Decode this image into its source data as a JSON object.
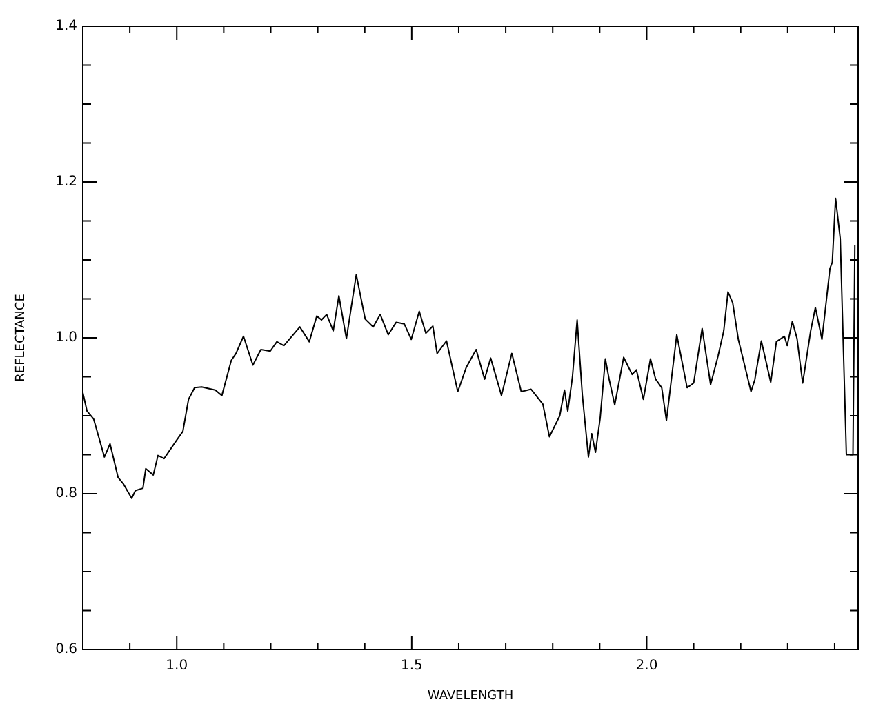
{
  "chart_data": {
    "type": "line",
    "xlabel": "WAVELENGTH",
    "ylabel": "REFLECTANCE",
    "xlim": [
      0.8,
      2.45
    ],
    "ylim": [
      0.6,
      1.4
    ],
    "xticks": [
      {
        "value": 0.9,
        "label": null
      },
      {
        "value": 1.0,
        "label": "1.0"
      },
      {
        "value": 1.1,
        "label": null
      },
      {
        "value": 1.2,
        "label": null
      },
      {
        "value": 1.3,
        "label": null
      },
      {
        "value": 1.4,
        "label": null
      },
      {
        "value": 1.5,
        "label": "1.5"
      },
      {
        "value": 1.6,
        "label": null
      },
      {
        "value": 1.7,
        "label": null
      },
      {
        "value": 1.8,
        "label": null
      },
      {
        "value": 1.9,
        "label": null
      },
      {
        "value": 2.0,
        "label": "2.0"
      },
      {
        "value": 2.1,
        "label": null
      },
      {
        "value": 2.2,
        "label": null
      },
      {
        "value": 2.3,
        "label": null
      },
      {
        "value": 2.4,
        "label": null
      }
    ],
    "yticks": [
      0.6,
      {
        "value": 0.65,
        "label": null
      },
      {
        "value": 0.7,
        "label": null
      },
      {
        "value": 0.75,
        "label": null
      },
      0.8,
      {
        "value": 0.85,
        "label": null
      },
      {
        "value": 0.9,
        "label": null
      },
      {
        "value": 0.95,
        "label": null
      },
      {
        "value": 1.0,
        "label": "1.0"
      },
      {
        "value": 1.05,
        "label": null
      },
      {
        "value": 1.1,
        "label": null
      },
      {
        "value": 1.15,
        "label": null
      },
      1.2,
      {
        "value": 1.25,
        "label": null
      },
      {
        "value": 1.3,
        "label": null
      },
      {
        "value": 1.35,
        "label": null
      },
      1.4
    ],
    "grid": false,
    "legend": false,
    "marker": "none",
    "line_style": "solid",
    "series": [
      {
        "color": "#000000",
        "x": [
          0.8,
          0.809,
          0.823,
          0.846,
          0.858,
          0.875,
          0.887,
          0.904,
          0.912,
          0.928,
          0.934,
          0.95,
          0.96,
          0.973,
          0.999,
          1.013,
          1.025,
          1.038,
          1.053,
          1.082,
          1.096,
          1.116,
          1.126,
          1.142,
          1.162,
          1.179,
          1.199,
          1.213,
          1.228,
          1.262,
          1.282,
          1.298,
          1.308,
          1.319,
          1.333,
          1.345,
          1.361,
          1.382,
          1.401,
          1.418,
          1.433,
          1.45,
          1.467,
          1.484,
          1.499,
          1.516,
          1.53,
          1.545,
          1.554,
          1.574,
          1.598,
          1.616,
          1.637,
          1.655,
          1.668,
          1.691,
          1.713,
          1.733,
          1.754,
          1.779,
          1.793,
          1.815,
          1.825,
          1.832,
          1.842,
          1.852,
          1.863,
          1.876,
          1.883,
          1.891,
          1.901,
          1.912,
          1.92,
          1.932,
          1.951,
          1.969,
          1.978,
          1.993,
          2.008,
          2.019,
          2.032,
          2.042,
          2.064,
          2.086,
          2.1,
          2.118,
          2.136,
          2.152,
          2.164,
          2.173,
          2.183,
          2.195,
          2.222,
          2.23,
          2.244,
          2.264,
          2.276,
          2.293,
          2.299,
          2.31,
          2.32,
          2.332,
          2.349,
          2.359,
          2.373,
          2.39,
          2.395,
          2.402,
          2.412,
          2.425,
          2.439,
          2.443
        ],
        "values": [
          0.93,
          0.906,
          0.896,
          0.847,
          0.864,
          0.821,
          0.812,
          0.794,
          0.804,
          0.807,
          0.832,
          0.824,
          0.849,
          0.845,
          0.868,
          0.88,
          0.921,
          0.936,
          0.937,
          0.933,
          0.926,
          0.971,
          0.98,
          1.002,
          0.965,
          0.985,
          0.983,
          0.995,
          0.99,
          1.014,
          0.995,
          1.028,
          1.023,
          1.03,
          1.009,
          1.054,
          0.999,
          1.081,
          1.024,
          1.014,
          1.03,
          1.004,
          1.02,
          1.018,
          0.998,
          1.034,
          1.006,
          1.015,
          0.98,
          0.996,
          0.931,
          0.962,
          0.985,
          0.947,
          0.974,
          0.926,
          0.98,
          0.931,
          0.934,
          0.915,
          0.873,
          0.9,
          0.933,
          0.906,
          0.95,
          1.023,
          0.927,
          0.847,
          0.877,
          0.853,
          0.897,
          0.973,
          0.947,
          0.914,
          0.975,
          0.953,
          0.959,
          0.921,
          0.973,
          0.947,
          0.936,
          0.894,
          1.004,
          0.936,
          0.942,
          1.012,
          0.94,
          0.977,
          1.009,
          1.059,
          1.045,
          0.998,
          0.931,
          0.946,
          0.996,
          0.943,
          0.995,
          1.002,
          0.99,
          1.021,
          0.999,
          0.942,
          1.009,
          1.039,
          0.998,
          1.089,
          1.097,
          1.179,
          1.127,
          0.85,
          0.85,
          1.119
        ]
      }
    ]
  }
}
